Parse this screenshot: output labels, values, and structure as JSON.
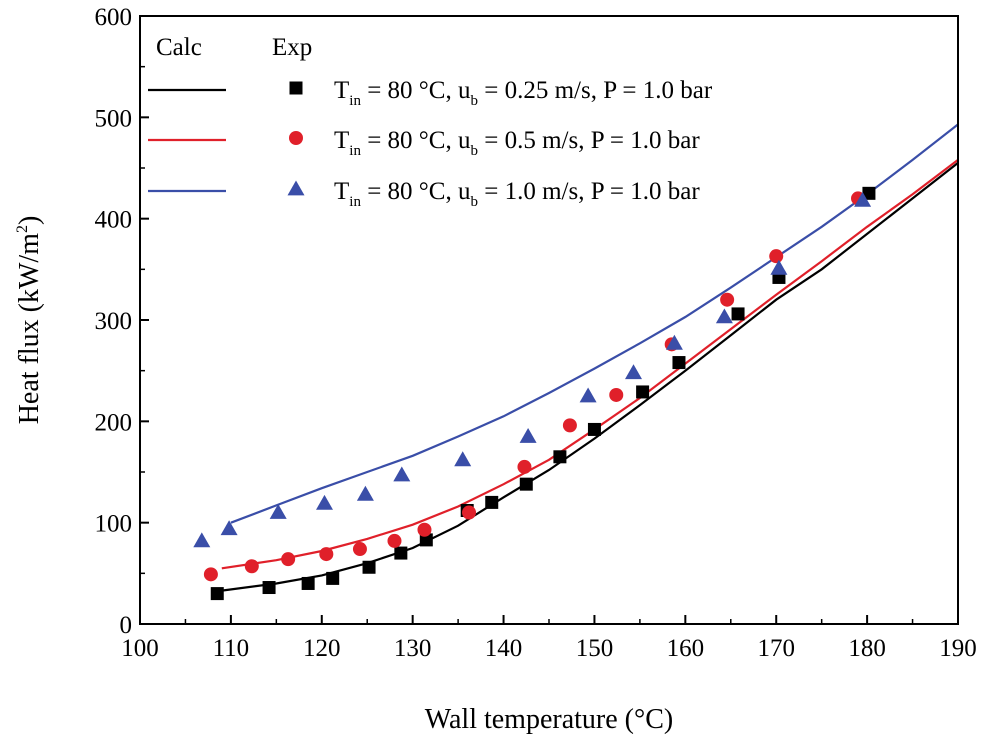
{
  "chart_data": {
    "type": "scatter",
    "xlabel": "Wall temperature (°C)",
    "ylabel_parts": {
      "main": "Heat flux (kW/m",
      "sup": "2",
      "tail": ")"
    },
    "xlim": [
      100,
      190
    ],
    "ylim": [
      0,
      600
    ],
    "xticks": [
      100,
      110,
      120,
      130,
      140,
      150,
      160,
      170,
      180,
      190
    ],
    "yticks": [
      0,
      100,
      200,
      300,
      400,
      500,
      600
    ],
    "legend": {
      "position": "top-left",
      "header_calc": "Calc",
      "header_exp": "Exp"
    },
    "series": [
      {
        "name": "T_in = 80 °C, u_b = 0.25 m/s, P = 1.0 bar",
        "label_parts": {
          "t": "T",
          "t_sub": "in",
          "mid": " = 80 °C, u",
          "u_sub": "b",
          "rest": " = 0.25 m/s, P = 1.0 bar"
        },
        "color": "#000000",
        "marker": "square",
        "calc": {
          "x": [
            109,
            115,
            120,
            125,
            130,
            135,
            140,
            145,
            150,
            155,
            160,
            165,
            170,
            175,
            180,
            185,
            190
          ],
          "y": [
            33,
            40,
            48,
            60,
            75,
            97,
            125,
            152,
            183,
            216,
            250,
            285,
            320,
            350,
            385,
            420,
            455
          ]
        },
        "exp": {
          "x": [
            108.5,
            114.2,
            118.5,
            121.2,
            125.2,
            128.7,
            131.5,
            136.0,
            138.7,
            142.5,
            146.2,
            150.0,
            155.3,
            159.3,
            165.8,
            170.3,
            180.2
          ],
          "y": [
            30,
            36,
            40,
            45,
            56,
            70,
            83,
            112,
            120,
            138,
            165,
            192,
            229,
            258,
            306,
            342,
            425
          ]
        }
      },
      {
        "name": "T_in = 80 °C, u_b = 0.5 m/s, P = 1.0 bar",
        "label_parts": {
          "t": "T",
          "t_sub": "in",
          "mid": " = 80 °C, u",
          "u_sub": "b",
          "rest": " = 0.5 m/s, P = 1.0 bar"
        },
        "color": "#e0202a",
        "marker": "circle",
        "calc": {
          "x": [
            109,
            115,
            120,
            125,
            130,
            135,
            140,
            145,
            150,
            155,
            160,
            165,
            170,
            175,
            180,
            185,
            190
          ],
          "y": [
            55,
            63,
            72,
            84,
            98,
            116,
            138,
            162,
            192,
            223,
            257,
            291,
            325,
            358,
            392,
            424,
            458
          ]
        },
        "exp": {
          "x": [
            107.8,
            112.3,
            116.3,
            120.5,
            124.2,
            128.0,
            131.3,
            136.2,
            142.3,
            147.3,
            152.4,
            158.5,
            164.6,
            170.0,
            179.0
          ],
          "y": [
            49,
            57,
            64,
            69,
            74,
            82,
            93,
            110,
            155,
            196,
            226,
            276,
            320,
            363,
            420
          ]
        }
      },
      {
        "name": "T_in = 80 °C, u_b = 1.0 m/s, P = 1.0 bar",
        "label_parts": {
          "t": "T",
          "t_sub": "in",
          "mid": " = 80 °C, u",
          "u_sub": "b",
          "rest": " = 1.0 m/s, P = 1.0 bar"
        },
        "color": "#3a4ea8",
        "marker": "triangle",
        "calc": {
          "x": [
            110,
            115,
            120,
            125,
            130,
            135,
            140,
            145,
            150,
            155,
            160,
            165,
            170,
            175,
            180,
            185,
            190
          ],
          "y": [
            100,
            117,
            134,
            150,
            166,
            185,
            205,
            228,
            252,
            277,
            303,
            332,
            362,
            392,
            424,
            458,
            493
          ]
        },
        "exp": {
          "x": [
            106.8,
            109.8,
            115.2,
            120.3,
            124.8,
            128.8,
            135.5,
            142.7,
            149.3,
            154.3,
            158.8,
            164.3,
            170.3,
            179.5
          ],
          "y": [
            82,
            94,
            110,
            119,
            128,
            147,
            162,
            185,
            225,
            248,
            277,
            303,
            351,
            418
          ]
        }
      }
    ]
  }
}
